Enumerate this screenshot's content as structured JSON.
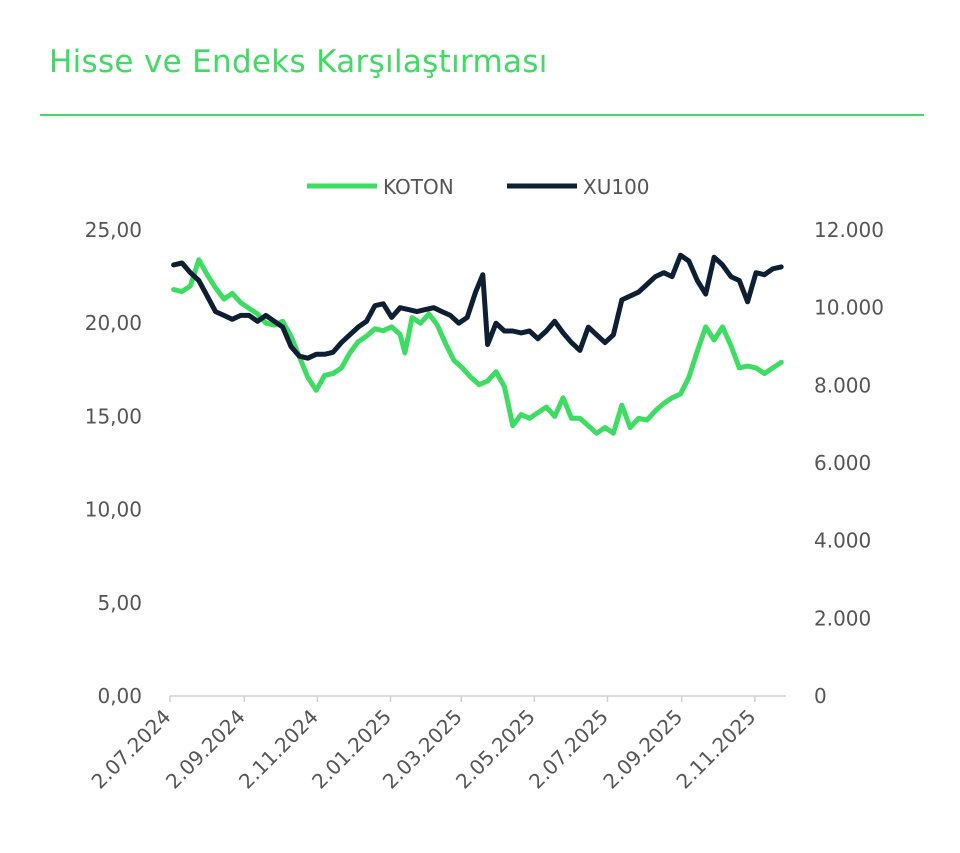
{
  "page": {
    "title": "Hisse ve Endeks Karşılaştırması"
  },
  "colors": {
    "accent": "#3DDC62",
    "series_koton": "#3DDC62",
    "series_xu100": "#0F1F33",
    "axis_text": "#555555",
    "axis_line": "#D0D0D0"
  },
  "chart_data": {
    "type": "line",
    "title": "",
    "xlabel": "",
    "ylabel": "",
    "legend_position": "top-center",
    "grid": false,
    "x_tick_labels": [
      "2.07.2024",
      "2.09.2024",
      "2.11.2024",
      "2.01.2025",
      "2.03.2025",
      "2.05.2025",
      "2.07.2025",
      "2.09.2025",
      "2.11.2025"
    ],
    "x_tick_dates": [
      "2024-07-02",
      "2024-09-02",
      "2024-11-02",
      "2025-01-02",
      "2025-03-02",
      "2025-05-02",
      "2025-07-02",
      "2025-09-02",
      "2025-11-02"
    ],
    "y_left": {
      "range": [
        0,
        25
      ],
      "tick_values": [
        0,
        5,
        10,
        15,
        20,
        25
      ],
      "tick_labels": [
        "0,00",
        "5,00",
        "10,00",
        "15,00",
        "20,00",
        "25,00"
      ]
    },
    "y_right": {
      "range": [
        0,
        12000
      ],
      "tick_values": [
        0,
        2000,
        4000,
        6000,
        8000,
        10000,
        12000
      ],
      "tick_labels": [
        "0",
        "2.000",
        "4.000",
        "6.000",
        "8.000",
        "10.000",
        "12.000"
      ]
    },
    "series": [
      {
        "name": "KOTON",
        "axis": "left",
        "points": [
          [
            "2024-07-05",
            21.8
          ],
          [
            "2024-07-12",
            21.7
          ],
          [
            "2024-07-19",
            22.0
          ],
          [
            "2024-07-26",
            23.4
          ],
          [
            "2024-08-02",
            22.6
          ],
          [
            "2024-08-09",
            21.9
          ],
          [
            "2024-08-16",
            21.3
          ],
          [
            "2024-08-23",
            21.6
          ],
          [
            "2024-08-30",
            21.1
          ],
          [
            "2024-09-06",
            20.8
          ],
          [
            "2024-09-13",
            20.5
          ],
          [
            "2024-09-20",
            20.0
          ],
          [
            "2024-09-27",
            19.9
          ],
          [
            "2024-10-04",
            20.1
          ],
          [
            "2024-10-11",
            19.3
          ],
          [
            "2024-10-18",
            18.2
          ],
          [
            "2024-10-25",
            17.1
          ],
          [
            "2024-11-01",
            16.4
          ],
          [
            "2024-11-08",
            17.2
          ],
          [
            "2024-11-15",
            17.3
          ],
          [
            "2024-11-22",
            17.6
          ],
          [
            "2024-11-29",
            18.4
          ],
          [
            "2024-12-06",
            19.0
          ],
          [
            "2024-12-13",
            19.3
          ],
          [
            "2024-12-20",
            19.7
          ],
          [
            "2024-12-27",
            19.6
          ],
          [
            "2025-01-03",
            19.8
          ],
          [
            "2025-01-10",
            19.4
          ],
          [
            "2025-01-14",
            18.4
          ],
          [
            "2025-01-20",
            20.3
          ],
          [
            "2025-01-27",
            20.0
          ],
          [
            "2025-02-03",
            20.5
          ],
          [
            "2025-02-10",
            19.9
          ],
          [
            "2025-02-17",
            18.9
          ],
          [
            "2025-02-24",
            18.0
          ],
          [
            "2025-03-03",
            17.6
          ],
          [
            "2025-03-10",
            17.1
          ],
          [
            "2025-03-17",
            16.7
          ],
          [
            "2025-03-24",
            16.9
          ],
          [
            "2025-03-31",
            17.4
          ],
          [
            "2025-04-07",
            16.6
          ],
          [
            "2025-04-14",
            14.5
          ],
          [
            "2025-04-21",
            15.1
          ],
          [
            "2025-04-28",
            14.9
          ],
          [
            "2025-05-05",
            15.2
          ],
          [
            "2025-05-12",
            15.5
          ],
          [
            "2025-05-19",
            15.0
          ],
          [
            "2025-05-26",
            16.0
          ],
          [
            "2025-06-02",
            14.9
          ],
          [
            "2025-06-09",
            14.9
          ],
          [
            "2025-06-16",
            14.5
          ],
          [
            "2025-06-23",
            14.1
          ],
          [
            "2025-06-30",
            14.4
          ],
          [
            "2025-07-07",
            14.1
          ],
          [
            "2025-07-14",
            15.6
          ],
          [
            "2025-07-21",
            14.4
          ],
          [
            "2025-07-28",
            14.9
          ],
          [
            "2025-08-04",
            14.8
          ],
          [
            "2025-08-11",
            15.3
          ],
          [
            "2025-08-18",
            15.7
          ],
          [
            "2025-08-25",
            16.0
          ],
          [
            "2025-09-01",
            16.2
          ],
          [
            "2025-09-08",
            17.1
          ],
          [
            "2025-09-15",
            18.5
          ],
          [
            "2025-09-22",
            19.8
          ],
          [
            "2025-09-29",
            19.1
          ],
          [
            "2025-10-06",
            19.8
          ],
          [
            "2025-10-13",
            18.8
          ],
          [
            "2025-10-20",
            17.6
          ],
          [
            "2025-10-27",
            17.7
          ],
          [
            "2025-11-03",
            17.6
          ],
          [
            "2025-11-10",
            17.3
          ],
          [
            "2025-11-17",
            17.6
          ],
          [
            "2025-11-24",
            17.9
          ]
        ]
      },
      {
        "name": "XU100",
        "axis": "right",
        "points": [
          [
            "2024-07-05",
            11100
          ],
          [
            "2024-07-12",
            11150
          ],
          [
            "2024-07-19",
            10900
          ],
          [
            "2024-07-26",
            10700
          ],
          [
            "2024-08-02",
            10300
          ],
          [
            "2024-08-09",
            9900
          ],
          [
            "2024-08-16",
            9800
          ],
          [
            "2024-08-23",
            9700
          ],
          [
            "2024-08-30",
            9800
          ],
          [
            "2024-09-06",
            9800
          ],
          [
            "2024-09-13",
            9650
          ],
          [
            "2024-09-20",
            9800
          ],
          [
            "2024-09-27",
            9650
          ],
          [
            "2024-10-04",
            9500
          ],
          [
            "2024-10-11",
            9000
          ],
          [
            "2024-10-18",
            8750
          ],
          [
            "2024-10-25",
            8700
          ],
          [
            "2024-11-01",
            8800
          ],
          [
            "2024-11-08",
            8800
          ],
          [
            "2024-11-15",
            8850
          ],
          [
            "2024-11-22",
            9100
          ],
          [
            "2024-11-29",
            9300
          ],
          [
            "2024-12-06",
            9500
          ],
          [
            "2024-12-13",
            9650
          ],
          [
            "2024-12-20",
            10050
          ],
          [
            "2024-12-27",
            10100
          ],
          [
            "2025-01-03",
            9750
          ],
          [
            "2025-01-10",
            10000
          ],
          [
            "2025-01-17",
            9950
          ],
          [
            "2025-01-24",
            9900
          ],
          [
            "2025-01-31",
            9950
          ],
          [
            "2025-02-07",
            10000
          ],
          [
            "2025-02-14",
            9900
          ],
          [
            "2025-02-21",
            9800
          ],
          [
            "2025-02-28",
            9600
          ],
          [
            "2025-03-07",
            9750
          ],
          [
            "2025-03-14",
            10400
          ],
          [
            "2025-03-20",
            10850
          ],
          [
            "2025-03-24",
            9050
          ],
          [
            "2025-03-31",
            9600
          ],
          [
            "2025-04-07",
            9400
          ],
          [
            "2025-04-14",
            9400
          ],
          [
            "2025-04-21",
            9350
          ],
          [
            "2025-04-28",
            9400
          ],
          [
            "2025-05-05",
            9200
          ],
          [
            "2025-05-12",
            9400
          ],
          [
            "2025-05-19",
            9650
          ],
          [
            "2025-05-26",
            9350
          ],
          [
            "2025-06-02",
            9100
          ],
          [
            "2025-06-09",
            8900
          ],
          [
            "2025-06-16",
            9500
          ],
          [
            "2025-06-23",
            9300
          ],
          [
            "2025-06-30",
            9100
          ],
          [
            "2025-07-07",
            9300
          ],
          [
            "2025-07-14",
            10200
          ],
          [
            "2025-07-21",
            10300
          ],
          [
            "2025-07-28",
            10400
          ],
          [
            "2025-08-04",
            10600
          ],
          [
            "2025-08-11",
            10800
          ],
          [
            "2025-08-18",
            10900
          ],
          [
            "2025-08-25",
            10800
          ],
          [
            "2025-09-01",
            11350
          ],
          [
            "2025-09-08",
            11200
          ],
          [
            "2025-09-15",
            10700
          ],
          [
            "2025-09-22",
            10350
          ],
          [
            "2025-09-29",
            11300
          ],
          [
            "2025-10-06",
            11100
          ],
          [
            "2025-10-13",
            10800
          ],
          [
            "2025-10-20",
            10700
          ],
          [
            "2025-10-27",
            10150
          ],
          [
            "2025-11-03",
            10900
          ],
          [
            "2025-11-10",
            10850
          ],
          [
            "2025-11-17",
            11000
          ],
          [
            "2025-11-24",
            11050
          ]
        ]
      }
    ]
  }
}
